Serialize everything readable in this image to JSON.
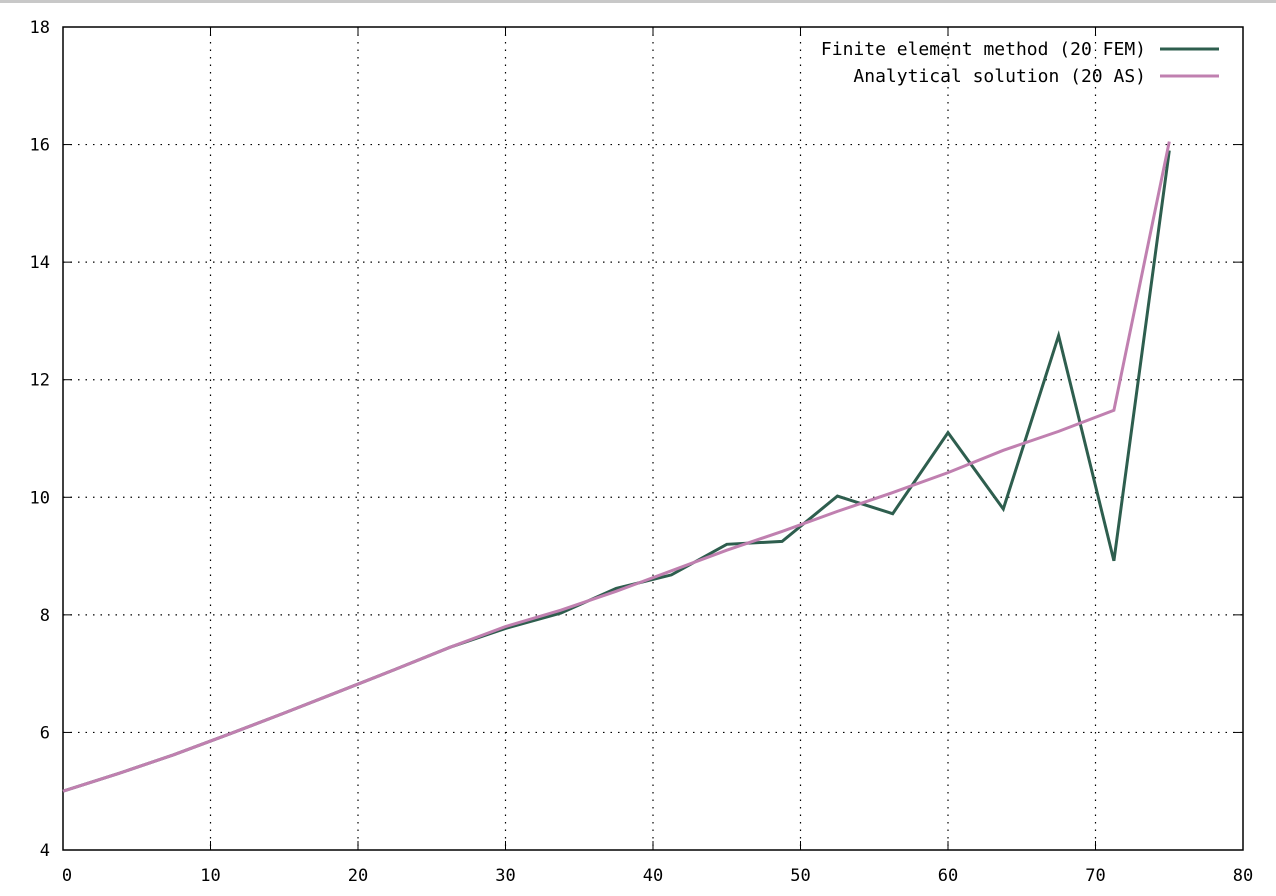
{
  "chart_data": {
    "type": "line",
    "title": "",
    "xlabel": "",
    "ylabel": "",
    "xlim": [
      0,
      80
    ],
    "ylim": [
      4,
      18
    ],
    "x_ticks": [
      0,
      10,
      20,
      30,
      40,
      50,
      60,
      70,
      80
    ],
    "y_ticks": [
      4,
      6,
      8,
      10,
      12,
      14,
      16,
      18
    ],
    "grid": true,
    "legend_position": "top-right",
    "series": [
      {
        "name": "Finite element method (20 FEM)",
        "color": "#2e5e4e",
        "x": [
          0,
          3.75,
          7.5,
          11.25,
          15,
          18.75,
          22.5,
          26.25,
          30,
          33.75,
          37.5,
          41.25,
          45,
          48.75,
          52.5,
          56.25,
          60,
          63.75,
          67.5,
          71.25,
          75
        ],
        "y": [
          5.0,
          5.3,
          5.62,
          5.97,
          6.33,
          6.7,
          7.07,
          7.45,
          7.77,
          8.03,
          8.45,
          8.68,
          9.2,
          9.25,
          10.02,
          9.72,
          11.1,
          9.8,
          12.75,
          8.92,
          15.9
        ]
      },
      {
        "name": "Analytical solution (20 AS)",
        "color": "#c080b0",
        "x": [
          0,
          3.75,
          7.5,
          11.25,
          15,
          18.75,
          22.5,
          26.25,
          30,
          33.75,
          37.5,
          41.25,
          45,
          48.75,
          52.5,
          56.25,
          60,
          63.75,
          67.5,
          71.25,
          75
        ],
        "y": [
          5.0,
          5.3,
          5.62,
          5.97,
          6.33,
          6.7,
          7.07,
          7.45,
          7.8,
          8.08,
          8.4,
          8.75,
          9.1,
          9.42,
          9.76,
          10.08,
          10.42,
          10.8,
          11.12,
          11.48,
          16.05
        ]
      }
    ]
  }
}
